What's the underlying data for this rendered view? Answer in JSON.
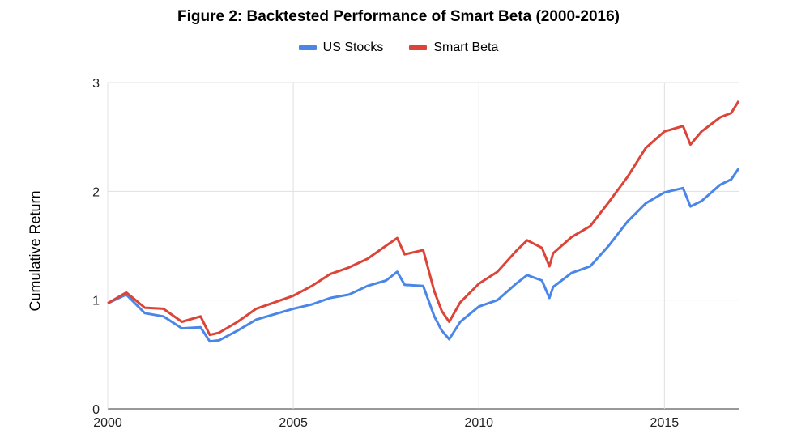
{
  "chart_data": {
    "type": "line",
    "title": "Figure 2: Backtested Performance of Smart Beta (2000-2016)",
    "xlabel": "",
    "ylabel": "Cumulative Return",
    "x_ticks": [
      2000,
      2005,
      2010,
      2015
    ],
    "y_ticks": [
      0,
      1,
      2,
      3
    ],
    "xlim": [
      2000,
      2017
    ],
    "ylim": [
      0,
      3
    ],
    "grid": true,
    "legend_position": "top",
    "x": [
      2000.0,
      2000.5,
      2001.0,
      2001.5,
      2002.0,
      2002.5,
      2002.75,
      2003.0,
      2003.5,
      2004.0,
      2004.5,
      2005.0,
      2005.5,
      2006.0,
      2006.5,
      2007.0,
      2007.5,
      2007.8,
      2008.0,
      2008.5,
      2008.8,
      2009.0,
      2009.2,
      2009.5,
      2010.0,
      2010.5,
      2011.0,
      2011.3,
      2011.7,
      2011.9,
      2012.0,
      2012.5,
      2013.0,
      2013.5,
      2014.0,
      2014.5,
      2015.0,
      2015.5,
      2015.7,
      2016.0,
      2016.5,
      2016.8,
      2017.0
    ],
    "series": [
      {
        "name": "US Stocks",
        "color": "#4a86e8",
        "values": [
          0.97,
          1.05,
          0.88,
          0.85,
          0.74,
          0.75,
          0.62,
          0.63,
          0.72,
          0.82,
          0.87,
          0.92,
          0.96,
          1.02,
          1.05,
          1.13,
          1.18,
          1.26,
          1.14,
          1.13,
          0.85,
          0.72,
          0.64,
          0.8,
          0.94,
          1.0,
          1.15,
          1.23,
          1.18,
          1.02,
          1.12,
          1.25,
          1.31,
          1.5,
          1.72,
          1.89,
          1.99,
          2.03,
          1.86,
          1.91,
          2.06,
          2.11,
          2.21
        ]
      },
      {
        "name": "Smart Beta",
        "color": "#db4437",
        "values": [
          0.97,
          1.07,
          0.93,
          0.92,
          0.8,
          0.85,
          0.68,
          0.7,
          0.8,
          0.92,
          0.98,
          1.04,
          1.13,
          1.24,
          1.3,
          1.38,
          1.5,
          1.57,
          1.42,
          1.46,
          1.08,
          0.9,
          0.8,
          0.98,
          1.15,
          1.26,
          1.45,
          1.55,
          1.48,
          1.31,
          1.43,
          1.58,
          1.68,
          1.9,
          2.13,
          2.4,
          2.55,
          2.6,
          2.43,
          2.55,
          2.68,
          2.72,
          2.83
        ]
      }
    ]
  }
}
